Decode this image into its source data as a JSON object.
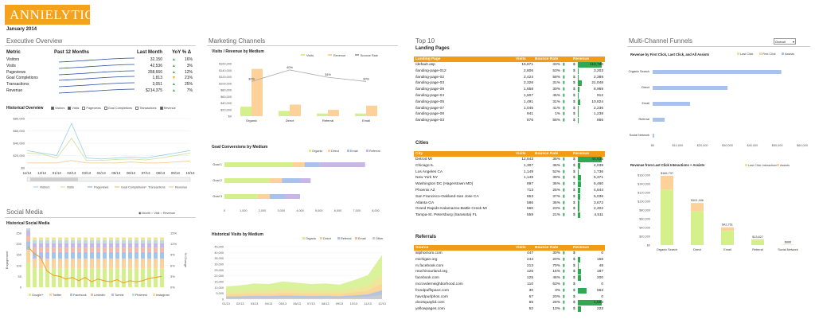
{
  "app": {
    "logo": "ANNIELYTICS",
    "date": "January 2014"
  },
  "executive": {
    "title": "Executive Overview",
    "headers": [
      "Metric",
      "Past 12 Months",
      "Last Month",
      "YoY % Δ"
    ],
    "rows": [
      {
        "metric": "Visitors",
        "value": "32,150",
        "arrow": "up",
        "yoy": "16%"
      },
      {
        "metric": "Visits",
        "value": "42,536",
        "arrow": "up",
        "yoy": "3%"
      },
      {
        "metric": "Pageviews",
        "value": "358,666",
        "arrow": "up",
        "yoy": "12%"
      },
      {
        "metric": "Goal Completions",
        "value": "1,813",
        "arrow": "down",
        "yoy": "21%"
      },
      {
        "metric": "Transactions",
        "value": "3,051",
        "arrow": "up",
        "yoy": "25%"
      },
      {
        "metric": "Revenue",
        "value": "$214,375",
        "arrow": "up",
        "yoy": "7%"
      }
    ]
  },
  "historical": {
    "title": "Historical Overview",
    "toggles": [
      "Visitors",
      "Visits",
      "Pageviews",
      "Goal Completions",
      "Transactions",
      "Revenue"
    ],
    "checked": [
      true,
      true,
      false,
      false,
      false,
      true
    ],
    "yticks": [
      "$80,000",
      "$60,000",
      "$40,000",
      "$20,000",
      "$0"
    ],
    "xticks": [
      "11/12",
      "12/12",
      "01/13",
      "02/13",
      "03/13",
      "04/13",
      "05/13",
      "06/13",
      "07/13",
      "08/13",
      "09/13",
      "10/13"
    ],
    "legend": [
      "Visitors",
      "Visits",
      "Pageviews",
      "Goal Completions",
      "Transactions",
      "Revenue"
    ]
  },
  "social": {
    "title": "Social Media",
    "chart_title": "Historical Social Media",
    "opts": [
      "Month",
      "Visit",
      "Revenue"
    ],
    "ylabel": "Engagement",
    "y2label": "% Change",
    "yticks": [
      "250",
      "200",
      "150",
      "100",
      "50",
      "0"
    ],
    "y2ticks": [
      "15%",
      "12%",
      "9%",
      "6%",
      "3%",
      "0%"
    ],
    "legend": [
      "Google+",
      "Twitter",
      "Facebook",
      "LinkedIn",
      "Tumblr",
      "Pinterest",
      "Instagram"
    ]
  },
  "marketing": {
    "title": "Marketing Channels",
    "c1": {
      "title": "Visits / Revenue by Medium",
      "legend": [
        "Visits",
        "Revenue",
        "Bounce Rate"
      ],
      "yticks": [
        "$160,000",
        "$140,000",
        "$120,000",
        "$100,000",
        "$80,000",
        "$60,000",
        "$40,000",
        "$20,000",
        "$0"
      ],
      "cats": [
        "Organic",
        "Direct",
        "Referral",
        "Email"
      ],
      "pct": [
        "30%",
        "40%",
        "34%",
        "30%"
      ]
    },
    "c2": {
      "title": "Goal Conversions by Medium",
      "legend": [
        "Organic",
        "Direct",
        "Email",
        "Referral"
      ],
      "goals": [
        "Goal 1",
        "Goal 2",
        "Goal 3"
      ],
      "xticks": [
        "0",
        "1,000",
        "2,000",
        "3,000",
        "4,000",
        "5,000",
        "6,000",
        "7,000",
        "8,000"
      ]
    },
    "c3": {
      "title": "Historical Visits by Medium",
      "legend": [
        "Organic",
        "Direct",
        "Referral",
        "Email",
        "Other"
      ],
      "yticks": [
        "45,000",
        "40,000",
        "35,000",
        "30,000",
        "25,000",
        "20,000",
        "15,000",
        "10,000",
        "5,000",
        "0"
      ],
      "xticks": [
        "01/13",
        "02/13",
        "03/13",
        "04/13",
        "05/13",
        "06/13",
        "07/13",
        "08/13",
        "09/13",
        "10/13",
        "11/13",
        "12/13"
      ]
    }
  },
  "top10": {
    "title": "Top 10",
    "landing": {
      "title": "Landing Pages",
      "headers": [
        "Landing Page",
        "Visits",
        "Bounce Rate",
        "Revenue"
      ],
      "rows": [
        [
          "/default.asp",
          "16,871",
          "33%",
          "$",
          "119,780"
        ],
        [
          "/landing-page-012",
          "2,806",
          "53%",
          "$",
          "3,203"
        ],
        [
          "/landing-page-02",
          "2,424",
          "58%",
          "$",
          "2,389"
        ],
        [
          "/landing-page-03",
          "2,326",
          "31%",
          "$",
          "21,048"
        ],
        [
          "/landing-page-09",
          "1,658",
          "30%",
          "$",
          "8,969"
        ],
        [
          "/landing-page-04",
          "1,507",
          "45%",
          "$",
          "912"
        ],
        [
          "/landing-page-05",
          "1,491",
          "31%",
          "$",
          "10,824"
        ],
        [
          "/landing-page-07",
          "1,045",
          "41%",
          "$",
          "2,236"
        ],
        [
          "/landing-page-08",
          "941",
          "1%",
          "$",
          "1,238"
        ],
        [
          "/landing-page-03",
          "876",
          "58%",
          "$",
          "866"
        ]
      ]
    },
    "cities": {
      "title": "Cities",
      "headers": [
        "City",
        "Visits",
        "Bounce Rate",
        "Revenue"
      ],
      "rows": [
        [
          "Detroit MI",
          "12,843",
          "36%",
          "$",
          "44,836"
        ],
        [
          "Chicago IL",
          "1,307",
          "36%",
          "$",
          "4,038"
        ],
        [
          "Los Angeles CA",
          "1,149",
          "52%",
          "$",
          "1,736"
        ],
        [
          "New York NY",
          "1,149",
          "39%",
          "$",
          "5,371"
        ],
        [
          "Washington DC (Hagerstown MD)",
          "897",
          "36%",
          "$",
          "6,460"
        ],
        [
          "Phoenix AZ",
          "713",
          "25%",
          "$",
          "4,844"
        ],
        [
          "San Francisco-Oakland-San Jose CA",
          "653",
          "37%",
          "$",
          "5,036"
        ],
        [
          "Atlanta GA",
          "586",
          "36%",
          "$",
          "3,672"
        ],
        [
          "Grand Rapids-Kalamazoo-Battle Creek MI",
          "560",
          "23%",
          "$",
          "2,402"
        ],
        [
          "Tampa-St. Petersburg (Sarasota) FL",
          "559",
          "21%",
          "$",
          "4,511"
        ]
      ]
    },
    "referrals": {
      "title": "Referrals",
      "headers": [
        "Source",
        "Visits",
        "Bounce Rate",
        "Revenue"
      ],
      "rows": [
        [
          "silphomom.com",
          "447",
          "30%",
          "$",
          "0"
        ],
        [
          "michigan.org",
          "244",
          "20%",
          "$",
          "158"
        ],
        [
          "m.facebook.com",
          "213",
          "70%",
          "$",
          "48"
        ],
        [
          "reachinourland.org",
          "126",
          "15%",
          "$",
          "187"
        ],
        [
          "facebook.com",
          "125",
          "46%",
          "$",
          "200"
        ],
        [
          "mcrovderneighborhood.com",
          "110",
          "63%",
          "$",
          "0"
        ],
        [
          "frondpuffspace.com",
          "30",
          "3%",
          "$",
          "563"
        ],
        [
          "havrdpurlphos.com",
          "67",
          "20%",
          "$",
          "0"
        ],
        [
          "doortquaylid.com",
          "65",
          "28%",
          "$",
          "1,584"
        ],
        [
          "yellowpages.com",
          "52",
          "13%",
          "$",
          "223"
        ]
      ]
    }
  },
  "funnels": {
    "title": "Multi-Channel Funnels",
    "select": "Overall",
    "c1": {
      "title": "Revenue by First Click, Last Click, and All Assists",
      "legend": [
        "Last Click",
        "First Click",
        "Assists"
      ],
      "cats": [
        "Organic Search",
        "Direct",
        "Email",
        "Referral",
        "Social Network"
      ],
      "xticks": [
        "$0",
        "$10,000",
        "$20,000",
        "$30,000",
        "$40,000",
        "$50,000",
        "$60,000"
      ]
    },
    "c2": {
      "title": "Revenue from Last Click Interactions + Assists",
      "legend": [
        "Last Click Interactions",
        "Assists"
      ],
      "cats": [
        "Organic Search",
        "Direct",
        "Email",
        "Referral",
        "Social Network"
      ],
      "vals": [
        "$166,737",
        "$101,166",
        "$42,751",
        "$13,827",
        "$886"
      ],
      "yticks": [
        "$160,000",
        "$140,000",
        "$120,000",
        "$100,000",
        "$80,000",
        "$60,000",
        "$40,000",
        "$20,000",
        "$0"
      ]
    }
  },
  "colors": {
    "orange": "#f29b18",
    "green": "#32a852",
    "lightgreen": "#d4f08a",
    "peach": "#fcd29a",
    "blue": "#a8c2ec",
    "navy": "#234f9a"
  }
}
